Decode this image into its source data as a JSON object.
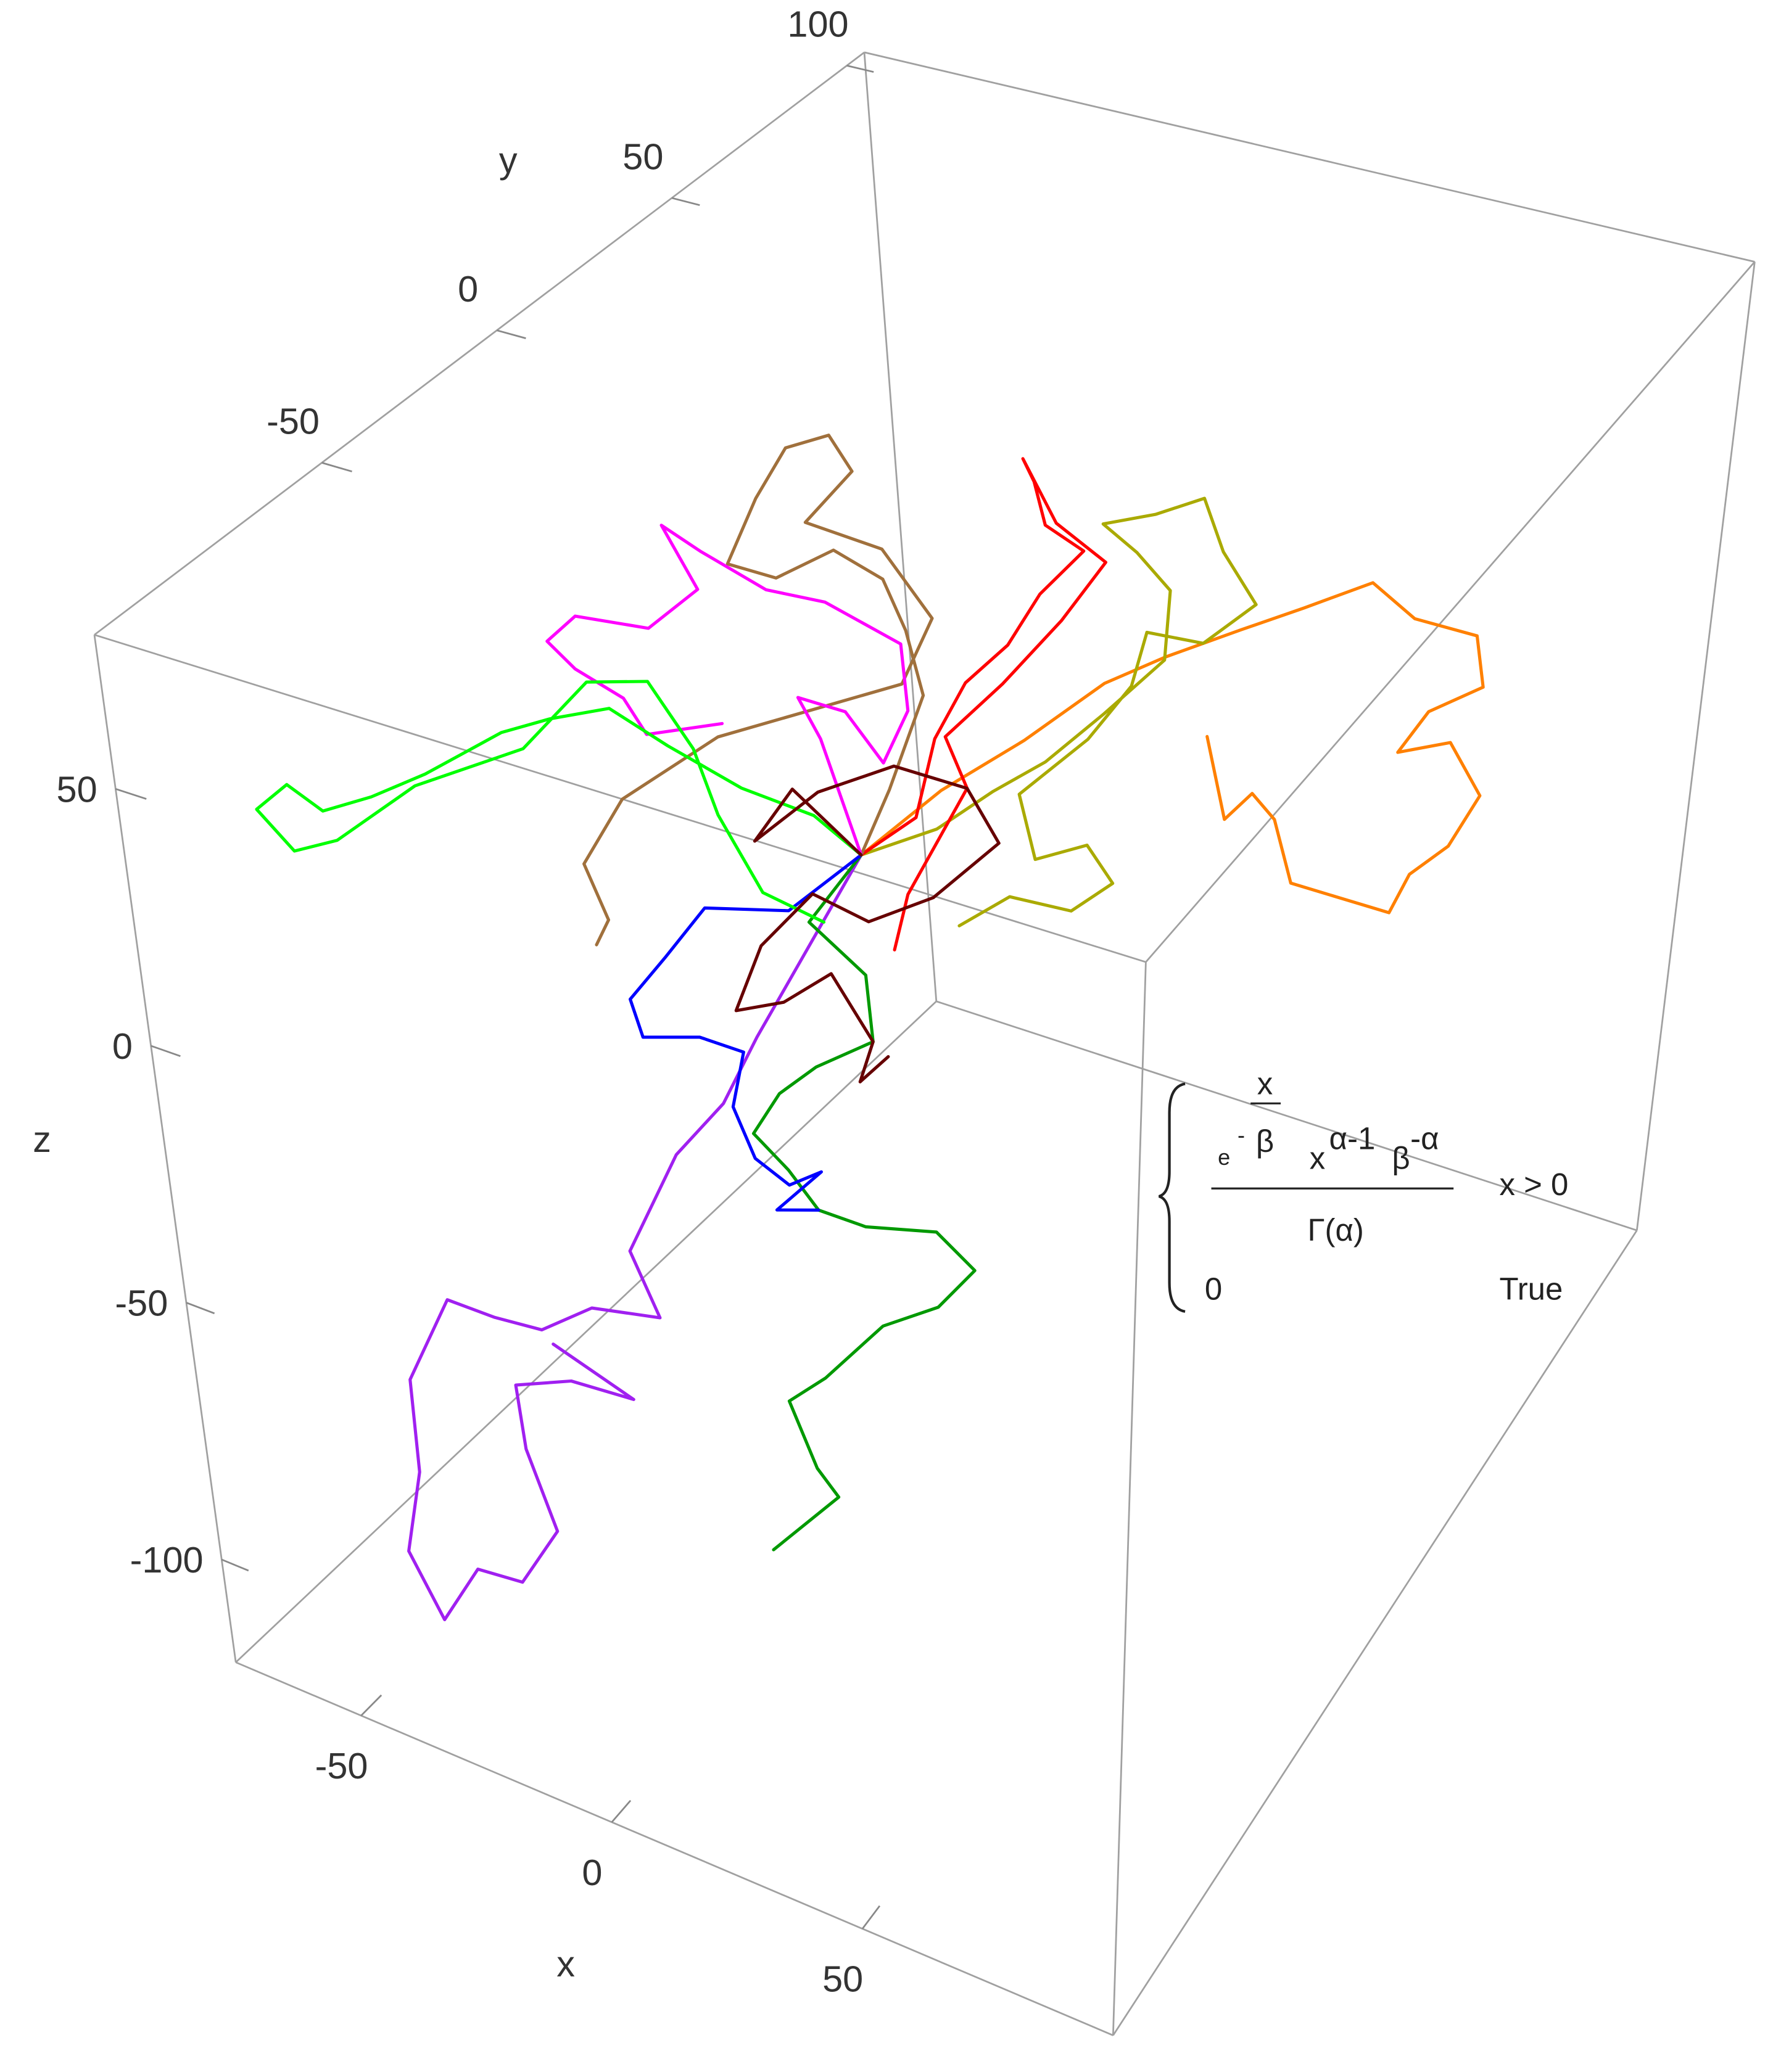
{
  "chart_data": {
    "type": "line3d",
    "xlabel": "x",
    "ylabel": "y",
    "zlabel": "z",
    "xlim": [
      -75,
      100
    ],
    "ylim": [
      -115,
      105
    ],
    "zlim": [
      -120,
      80
    ],
    "xticks": [
      -50,
      0,
      50
    ],
    "yticks": [
      -50,
      0,
      50,
      100
    ],
    "zticks": [
      -100,
      -50,
      0,
      50
    ],
    "series": [
      {
        "color": "#a020f0",
        "x": [
          -9,
          -32,
          -40,
          -51,
          -3,
          2,
          -11,
          -21,
          -30,
          -39,
          -48,
          -48,
          -52,
          -46,
          -38,
          -29,
          -21,
          -26,
          -27,
          -16,
          -4,
          -19
        ],
        "y": [
          -5,
          -5,
          -5,
          -5,
          -93,
          -93,
          -93,
          -93,
          -93,
          -93,
          -93,
          -93,
          -93,
          -93,
          -93,
          -93,
          -93,
          -93,
          -93,
          -93,
          -93,
          -93
        ],
        "z": [
          -2,
          -46,
          -62,
          -76,
          -25,
          -36,
          -39,
          -47,
          -48,
          -48,
          -67,
          -85,
          -102,
          -113,
          -100,
          -99,
          -86,
          -72,
          -60,
          -55,
          -54,
          -49
        ]
      },
      {
        "color": "#009900",
        "x": [
          -9,
          -20,
          -9,
          -8,
          -20,
          -28,
          -34,
          -27,
          -21,
          -11,
          4,
          12,
          4,
          44,
          33,
          26,
          31,
          35,
          22
        ],
        "y": [
          -5,
          -5,
          -5,
          -5,
          -5,
          -5,
          -5,
          -5,
          -5,
          -5,
          -5,
          -5,
          -5,
          -93,
          -93,
          -93,
          -93,
          -93,
          -93
        ],
        "z": [
          -2,
          -19,
          -26,
          -39,
          -48,
          -56,
          -66,
          -71,
          -77,
          -77,
          -73,
          -78,
          -88,
          -22,
          -36,
          -43,
          -54,
          -58,
          -73
        ]
      },
      {
        "color": "#0000ff",
        "x": [
          -9,
          -24,
          -41,
          -50,
          -58,
          -56,
          -44,
          -35,
          -38,
          -34,
          -27,
          -20,
          -30,
          -21
        ],
        "y": [
          -5,
          -5,
          -5,
          -5,
          -5,
          -5,
          -5,
          -5,
          -5,
          -5,
          -5,
          -5,
          -5,
          -5
        ],
        "z": [
          -2,
          -18,
          -23,
          -36,
          -47,
          -54,
          -50,
          -50,
          -62,
          -71,
          -74,
          -69,
          -80,
          -77
        ]
      },
      {
        "color": "#ff8000",
        "x": [
          -9,
          7,
          23,
          38,
          -2,
          14,
          27,
          41,
          50,
          63,
          65,
          54,
          48,
          59,
          66,
          60,
          52,
          48,
          36,
          26,
          22,
          17,
          11,
          7
        ],
        "y": [
          -5,
          -5,
          -5,
          -5,
          83,
          83,
          83,
          83,
          83,
          83,
          83,
          83,
          83,
          83,
          83,
          83,
          83,
          83,
          83,
          83,
          83,
          83,
          83,
          83
        ],
        "z": [
          -2,
          16,
          31,
          47,
          -14,
          -4,
          4,
          13,
          8,
          8,
          -2,
          -10,
          -20,
          -15,
          -24,
          -36,
          -44,
          -53,
          -53,
          -53,
          -41,
          -37,
          -44,
          -28
        ]
      },
      {
        "color": "#aaaa00",
        "x": [
          -9,
          6,
          17,
          27,
          38,
          49,
          -1,
          -8,
          -15,
          -4,
          6,
          10,
          17,
          6,
          -6,
          43,
          35,
          22,
          25,
          35,
          40,
          32,
          20,
          10
        ],
        "y": [
          -5,
          -5,
          -5,
          -5,
          -5,
          -5,
          83,
          83,
          83,
          83,
          83,
          83,
          83,
          83,
          83,
          -5,
          -5,
          -5,
          -5,
          -5,
          -5,
          -5,
          -5,
          -5
        ],
        "z": [
          -2,
          8,
          19,
          28,
          41,
          55,
          0,
          6,
          10,
          15,
          21,
          11,
          2,
          -9,
          -10,
          48,
          35,
          20,
          8,
          14,
          8,
          0,
          -1,
          -10
        ]
      },
      {
        "color": "#ff0000",
        "x": [
          -9,
          2,
          6,
          12,
          20,
          26,
          34,
          27,
          25,
          23,
          29,
          38,
          30,
          19,
          8,
          12,
          0,
          -3
        ],
        "y": [
          -5,
          -5,
          -5,
          -5,
          -5,
          -5,
          -5,
          -5,
          -5,
          -5,
          -5,
          -5,
          -5,
          -5,
          -5,
          -5,
          -5,
          -5
        ],
        "z": [
          -2,
          9,
          26,
          39,
          49,
          61,
          72,
          75,
          83,
          87,
          76,
          71,
          57,
          41,
          27,
          18,
          -7,
          -19
        ]
      },
      {
        "color": "#a0703c",
        "x": [
          -9,
          -3,
          4,
          1,
          -3,
          -12,
          -23,
          -32,
          -26,
          -20,
          -12,
          -8,
          -17,
          -3,
          6,
          0,
          -36,
          -56,
          -65,
          -61,
          -64
        ],
        "y": [
          -5,
          -5,
          -5,
          -5,
          -5,
          -5,
          -5,
          -5,
          -5,
          -5,
          -5,
          -5,
          -5,
          -5,
          -5,
          -5,
          -5,
          -5,
          -5,
          -5,
          -5
        ],
        "z": [
          -2,
          13,
          34,
          46,
          55,
          58,
          49,
          49,
          64,
          76,
          81,
          75,
          62,
          61,
          50,
          35,
          13,
          -6,
          -22,
          -32,
          -38
        ]
      },
      {
        "color": "#ff00ff",
        "x": [
          -9,
          -16,
          -20,
          -11,
          -4,
          1,
          0,
          -14,
          -25,
          -37,
          -44,
          -38,
          -48,
          -62,
          -68,
          -63,
          -54,
          -50,
          -35
        ],
        "y": [
          -5,
          -5,
          -5,
          -5,
          -5,
          -5,
          -5,
          -5,
          -5,
          -5,
          -5,
          -5,
          -5,
          -5,
          -5,
          -5,
          -5,
          -5,
          -5
        ],
        "z": [
          -2,
          19,
          26,
          26,
          18,
          30,
          43,
          47,
          46,
          50,
          53,
          42,
          31,
          29,
          22,
          18,
          15,
          9,
          16
        ]
      },
      {
        "color": "#00ff00",
        "x": [
          -9,
          -18,
          -32,
          -46,
          -57,
          -69,
          -79,
          -34,
          -44,
          -53,
          -59,
          -65,
          -59,
          -51,
          -36,
          -75,
          -61,
          -49,
          -41,
          -37,
          -29,
          -17
        ],
        "y": [
          -5,
          -5,
          -5,
          -5,
          -5,
          -5,
          -5,
          -93,
          -93,
          -93,
          -93,
          -93,
          -93,
          -93,
          -93,
          -5,
          -5,
          -5,
          -5,
          -5,
          -5,
          -5
        ],
        "z": [
          -2,
          3,
          4,
          8,
          12,
          6,
          0,
          56,
          48,
          42,
          45,
          38,
          32,
          37,
          53,
          -2,
          16,
          20,
          9,
          -3,
          -16,
          -18
        ]
      },
      {
        "color": "#660000",
        "x": [
          -9,
          -22,
          -30,
          -17,
          -2,
          12,
          18,
          5,
          -8,
          -19,
          -30,
          -36,
          -26,
          -16,
          -8,
          -11,
          -5
        ],
        "y": [
          -5,
          -5,
          -5,
          -5,
          -5,
          -5,
          -5,
          -5,
          -5,
          -5,
          -5,
          -5,
          -5,
          -5,
          -5,
          -5,
          -5
        ],
        "z": [
          -2,
          7,
          -6,
          8,
          18,
          18,
          9,
          -6,
          -15,
          -13,
          -27,
          -42,
          -37,
          -28,
          -39,
          -48,
          -41
        ]
      }
    ]
  },
  "annotation": {
    "e": "e",
    "exp_sign": "-",
    "exp_numerator": "x",
    "exp_denominator": "β",
    "x": "x",
    "x_exponent": "α-1",
    "beta": "β",
    "beta_exponent": "-α",
    "denominator": "Γ(α)",
    "condition": "x > 0",
    "otherwise_value": "0",
    "otherwise_condition": "True"
  }
}
